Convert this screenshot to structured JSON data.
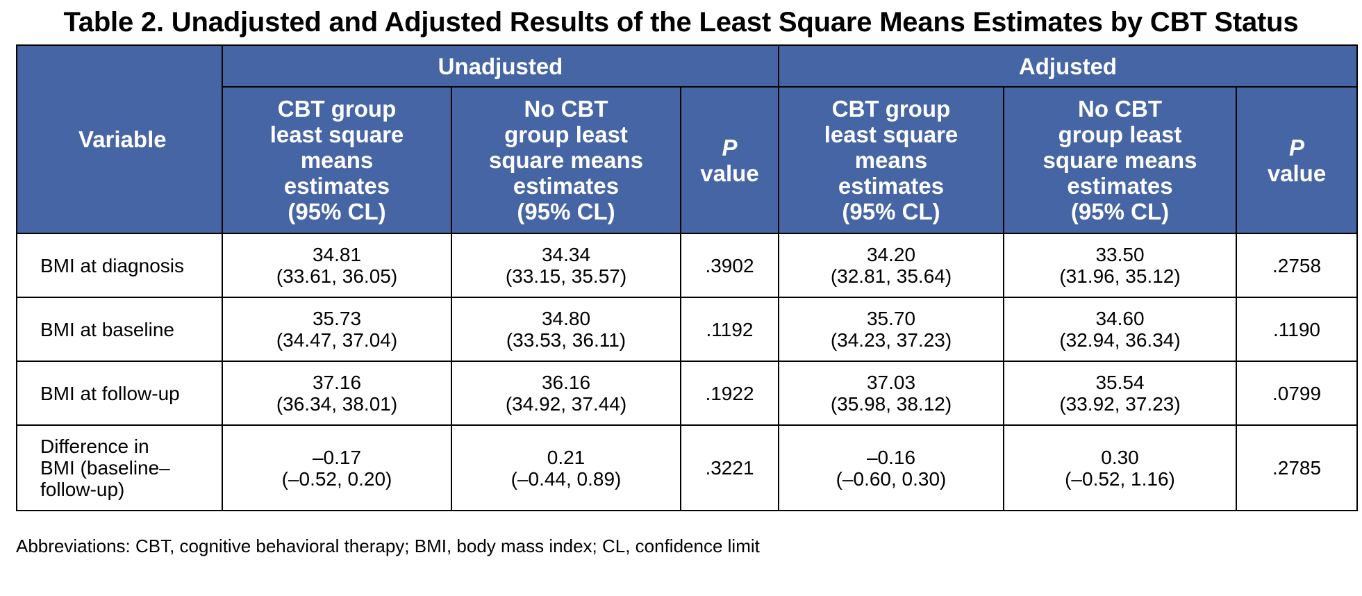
{
  "title": "Table 2. Unadjusted and Adjusted Results of the Least Square Means Estimates by CBT Status",
  "header": {
    "variable": "Variable",
    "unadjusted": "Unadjusted",
    "adjusted": "Adjusted",
    "cbt_col": "CBT group\nleast square\nmeans\nestimates\n(95% CL)",
    "nocbt_col": "No CBT\ngroup least\nsquare means\nestimates\n(95% CL)",
    "p_letter": "P",
    "p_word": "value"
  },
  "rows": [
    {
      "variable": "BMI at diagnosis",
      "unadj_cbt": {
        "est": "34.81",
        "ci": "(33.61, 36.05)"
      },
      "unadj_nocbt": {
        "est": "34.34",
        "ci": "(33.15, 35.57)"
      },
      "unadj_p": ".3902",
      "adj_cbt": {
        "est": "34.20",
        "ci": "(32.81, 35.64)"
      },
      "adj_nocbt": {
        "est": "33.50",
        "ci": "(31.96, 35.12)"
      },
      "adj_p": ".2758"
    },
    {
      "variable": "BMI at baseline",
      "unadj_cbt": {
        "est": "35.73",
        "ci": "(34.47, 37.04)"
      },
      "unadj_nocbt": {
        "est": "34.80",
        "ci": "(33.53, 36.11)"
      },
      "unadj_p": ".1192",
      "adj_cbt": {
        "est": "35.70",
        "ci": "(34.23, 37.23)"
      },
      "adj_nocbt": {
        "est": "34.60",
        "ci": "(32.94, 36.34)"
      },
      "adj_p": ".1190"
    },
    {
      "variable": "BMI at follow-up",
      "unadj_cbt": {
        "est": "37.16",
        "ci": "(36.34, 38.01)"
      },
      "unadj_nocbt": {
        "est": "36.16",
        "ci": "(34.92, 37.44)"
      },
      "unadj_p": ".1922",
      "adj_cbt": {
        "est": "37.03",
        "ci": "(35.98, 38.12)"
      },
      "adj_nocbt": {
        "est": "35.54",
        "ci": "(33.92, 37.23)"
      },
      "adj_p": ".0799"
    },
    {
      "variable": "Difference in\nBMI (baseline–\nfollow-up)",
      "unadj_cbt": {
        "est": "–0.17",
        "ci": "(–0.52, 0.20)"
      },
      "unadj_nocbt": {
        "est": "0.21",
        "ci": "(–0.44, 0.89)"
      },
      "unadj_p": ".3221",
      "adj_cbt": {
        "est": "–0.16",
        "ci": "(–0.60, 0.30)"
      },
      "adj_nocbt": {
        "est": "0.30",
        "ci": "(–0.52, 1.16)"
      },
      "adj_p": ".2785"
    }
  ],
  "footnote": "Abbreviations: CBT, cognitive behavioral therapy; BMI, body mass index; CL, confidence limit",
  "colors": {
    "header_bg": "#4665a5",
    "header_text": "#ffffff",
    "border": "#000000"
  }
}
